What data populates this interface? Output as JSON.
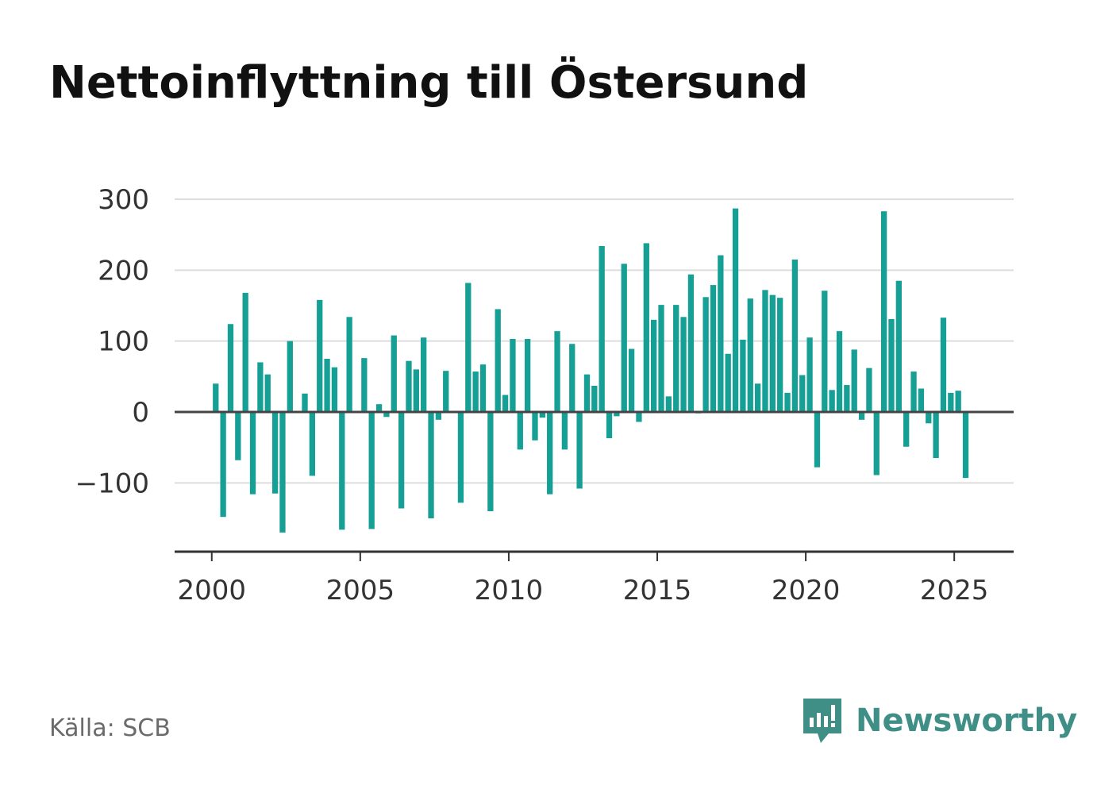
{
  "title": "Nettoinflyttning till Östersund",
  "source": "Källa: SCB",
  "brand": {
    "name": "Newsworthy",
    "color": "#3f8f87",
    "icon": "newsworthy-logo-icon"
  },
  "colors": {
    "bar": "#16a095",
    "grid": "#dddddd",
    "axis": "#444444"
  },
  "chart_data": {
    "type": "bar",
    "title": "Nettoinflyttning till Östersund",
    "xlabel": "",
    "ylabel": "",
    "x_start": 2000,
    "x_step": 0.25,
    "xlim": [
      1998.75,
      2027.0
    ],
    "ylim": [
      -197,
      300
    ],
    "yticks": [
      300,
      200,
      100,
      0,
      -100
    ],
    "ytick_labels": [
      "300",
      "200",
      "100",
      "0",
      "−100"
    ],
    "xticks": [
      2000,
      2005,
      2010,
      2015,
      2020,
      2025
    ],
    "xtick_labels": [
      "2000",
      "2005",
      "2010",
      "2015",
      "2020",
      "2025"
    ],
    "grid": true,
    "legend": false,
    "values": [
      40,
      -148,
      124,
      -68,
      168,
      -116,
      70,
      53,
      -115,
      -170,
      100,
      0,
      26,
      -90,
      158,
      75,
      63,
      -166,
      134,
      0,
      76,
      -165,
      11,
      -7,
      108,
      -136,
      72,
      60,
      105,
      -150,
      -11,
      58,
      0,
      -128,
      182,
      57,
      67,
      -140,
      145,
      24,
      103,
      -53,
      103,
      -40,
      -8,
      -116,
      114,
      -53,
      96,
      -108,
      53,
      37,
      234,
      -37,
      -6,
      209,
      89,
      -14,
      238,
      130,
      151,
      22,
      151,
      134,
      194,
      -2,
      162,
      179,
      221,
      82,
      287,
      102,
      160,
      40,
      172,
      165,
      161,
      27,
      215,
      52,
      105,
      -78,
      171,
      31,
      114,
      38,
      88,
      -11,
      62,
      -89,
      283,
      131,
      185,
      -49,
      57,
      33,
      -16,
      -65,
      133,
      27,
      30,
      -93
    ]
  }
}
